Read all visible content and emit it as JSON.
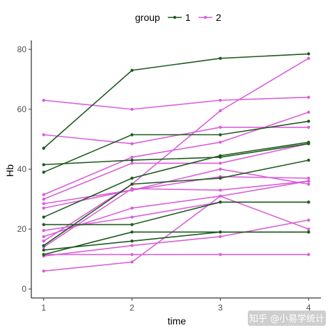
{
  "chart_data": {
    "type": "line",
    "xlabel": "time",
    "ylabel": "Hb",
    "x": [
      1,
      2,
      3,
      4
    ],
    "x_ticks": [
      "1",
      "2",
      "3",
      "4"
    ],
    "y_ticks": [
      "0",
      "20",
      "40",
      "60",
      "80"
    ],
    "ylim": [
      -3,
      83
    ],
    "xlim": [
      0.86,
      4.14
    ],
    "grid": false,
    "legend": {
      "title": "group",
      "position": "top",
      "entries": [
        {
          "label": "1",
          "color": "#1e5a1e"
        },
        {
          "label": "2",
          "color": "#da5ed9"
        }
      ]
    },
    "series": [
      {
        "group": "1",
        "color": "#1e5a1e",
        "values": [
          47,
          73,
          77,
          78.5
        ]
      },
      {
        "group": "1",
        "color": "#1e5a1e",
        "values": [
          39,
          51.5,
          51.5,
          56
        ]
      },
      {
        "group": "1",
        "color": "#1e5a1e",
        "values": [
          41.5,
          43,
          44,
          48.5
        ]
      },
      {
        "group": "1",
        "color": "#1e5a1e",
        "values": [
          24,
          37,
          44.5,
          49
        ]
      },
      {
        "group": "1",
        "color": "#1e5a1e",
        "values": [
          14.5,
          35,
          37,
          43
        ]
      },
      {
        "group": "1",
        "color": "#1e5a1e",
        "values": [
          21.5,
          21.5,
          29,
          29
        ]
      },
      {
        "group": "1",
        "color": "#1e5a1e",
        "values": [
          13,
          16,
          19,
          19
        ]
      },
      {
        "group": "1",
        "color": "#1e5a1e",
        "values": [
          11.5,
          19,
          19,
          19
        ]
      },
      {
        "group": "2",
        "color": "#da5ed9",
        "values": [
          63,
          60,
          63,
          64
        ]
      },
      {
        "group": "2",
        "color": "#da5ed9",
        "values": [
          51.5,
          48.5,
          54,
          54
        ]
      },
      {
        "group": "2",
        "color": "#da5ed9",
        "values": [
          16,
          35,
          59.5,
          77
        ]
      },
      {
        "group": "2",
        "color": "#da5ed9",
        "values": [
          31.5,
          44,
          49,
          59
        ]
      },
      {
        "group": "2",
        "color": "#da5ed9",
        "values": [
          30,
          42,
          42,
          48.5
        ]
      },
      {
        "group": "2",
        "color": "#da5ed9",
        "values": [
          28.5,
          33,
          40,
          35
        ]
      },
      {
        "group": "2",
        "color": "#da5ed9",
        "values": [
          27,
          33,
          37.5,
          37
        ]
      },
      {
        "group": "2",
        "color": "#da5ed9",
        "values": [
          14,
          33.5,
          33,
          36
        ]
      },
      {
        "group": "2",
        "color": "#da5ed9",
        "values": [
          17.5,
          27,
          31,
          20
        ]
      },
      {
        "group": "2",
        "color": "#da5ed9",
        "values": [
          19.5,
          24,
          29,
          29
        ]
      },
      {
        "group": "2",
        "color": "#da5ed9",
        "values": [
          11,
          14.5,
          17.5,
          23
        ]
      },
      {
        "group": "2",
        "color": "#da5ed9",
        "values": [
          6,
          9,
          31,
          36
        ]
      },
      {
        "group": "2",
        "color": "#da5ed9",
        "values": [
          11.5,
          11.5,
          11.5,
          11.5
        ]
      }
    ]
  },
  "watermark": "知乎 @小易学统计"
}
